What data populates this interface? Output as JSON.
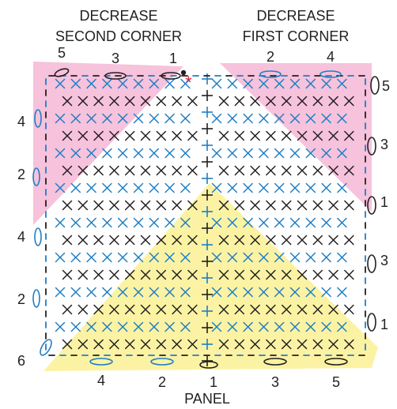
{
  "headings": {
    "left": [
      "DECREASE",
      "SECOND CORNER"
    ],
    "right": [
      "DECREASE",
      "FIRST CORNER"
    ],
    "bottom": "PANEL"
  },
  "labels": {
    "top_left_row": [
      "5",
      "3",
      "1"
    ],
    "top_right_row": [
      "2",
      "4"
    ],
    "right_column": [
      "5",
      "3",
      "1",
      "3",
      "1"
    ],
    "left_column": [
      "4",
      "2",
      "4",
      "2",
      "6"
    ],
    "bottom_row": [
      "4",
      "2",
      "1",
      "3",
      "5"
    ]
  },
  "colors": {
    "black_stitch": "#231f20",
    "blue_stitch": "#1f7ec4",
    "pink_region": "#f6c2dc",
    "yellow_region": "#fbf3a3",
    "marker": "#e0233a"
  },
  "icons": {
    "start_marker": "asterisk",
    "corner_dot": "dot"
  }
}
